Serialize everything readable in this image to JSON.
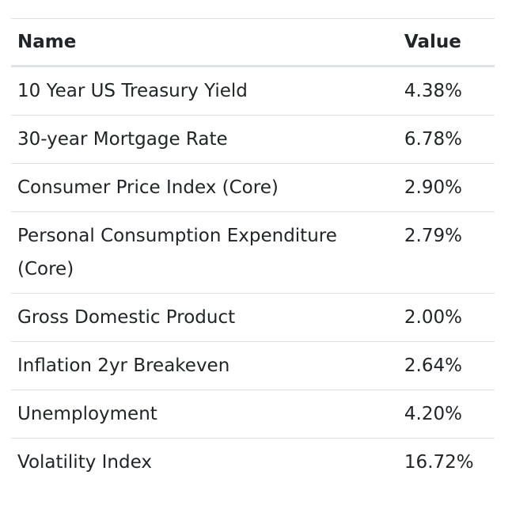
{
  "table": {
    "headers": {
      "name": "Name",
      "value": "Value"
    },
    "rows": [
      {
        "name": "10 Year US Treasury Yield",
        "value": "4.38%"
      },
      {
        "name": "30-year Mortgage Rate",
        "value": "6.78%"
      },
      {
        "name": "Consumer Price Index (Core)",
        "value": "2.90%"
      },
      {
        "name": "Personal Consumption Expenditure (Core)",
        "value": "2.79%"
      },
      {
        "name": "Gross Domestic Product",
        "value": "2.00%"
      },
      {
        "name": "Inflation 2yr Breakeven",
        "value": "2.64%"
      },
      {
        "name": "Unemployment",
        "value": "4.20%"
      },
      {
        "name": "Volatility Index",
        "value": "16.72%"
      }
    ]
  }
}
